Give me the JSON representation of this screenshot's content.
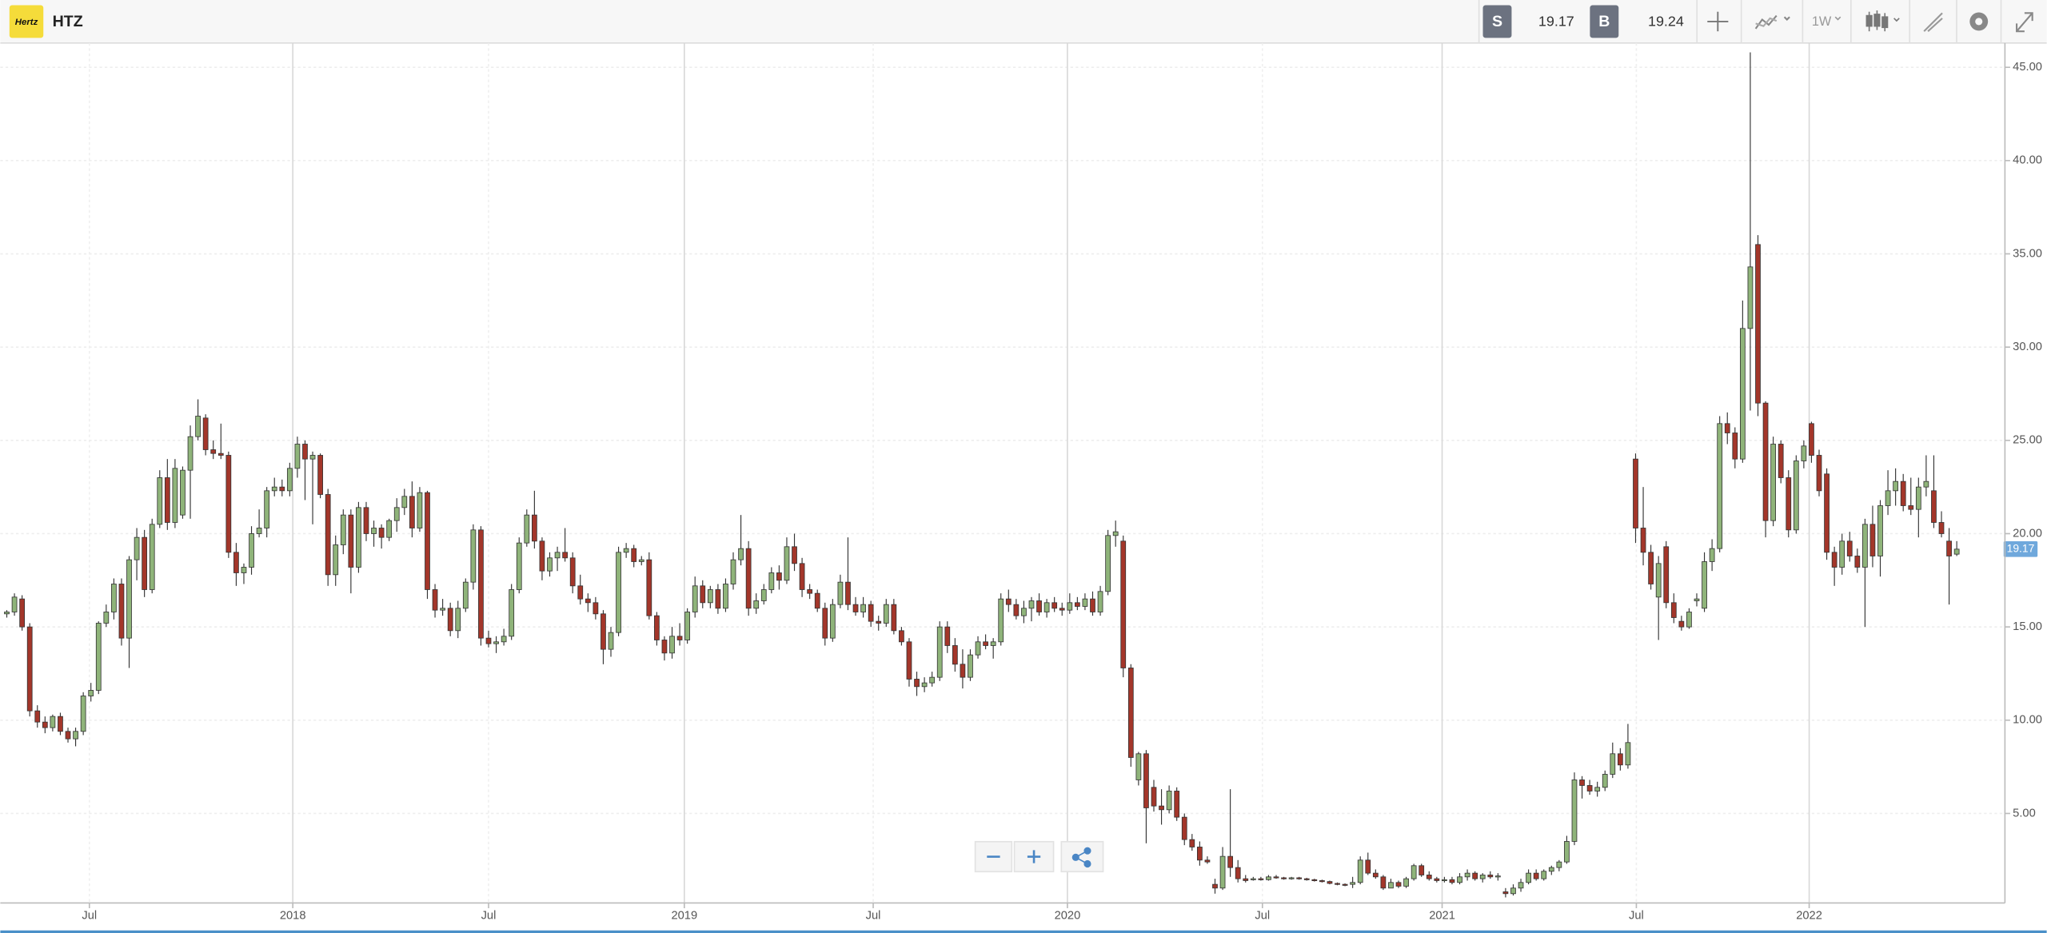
{
  "header": {
    "logo": "Hertz",
    "symbol": "HTZ",
    "sell_label": "S",
    "sell": 19.17,
    "buy_label": "B",
    "buy": 19.24,
    "interval": "1W"
  },
  "chart_data": {
    "type": "candlestick",
    "up_color": "#8fb47a",
    "down_color": "#a3362a",
    "grid": true,
    "ylim": [
      0.2,
      46.3
    ],
    "yticks": [
      {
        "value": 5,
        "label": "5.00"
      },
      {
        "value": 10,
        "label": "10.00"
      },
      {
        "value": 15,
        "label": "15.00"
      },
      {
        "value": 20,
        "label": "20.00"
      },
      {
        "value": 25,
        "label": "25.00"
      },
      {
        "value": 30,
        "label": "30.00"
      },
      {
        "value": 35,
        "label": "35.00"
      },
      {
        "value": 40,
        "label": "40.00"
      },
      {
        "value": 45,
        "label": "45.00"
      }
    ],
    "xlim": [
      -0.85,
      261.3
    ],
    "xticks": [
      {
        "value": 10.8,
        "label": "Jul"
      },
      {
        "value": 37.4,
        "label": "2018"
      },
      {
        "value": 63.0,
        "label": "Jul"
      },
      {
        "value": 88.6,
        "label": "2019"
      },
      {
        "value": 113.3,
        "label": "Jul"
      },
      {
        "value": 138.7,
        "label": "2020"
      },
      {
        "value": 164.2,
        "label": "Jul"
      },
      {
        "value": 187.7,
        "label": "2021"
      },
      {
        "value": 213.1,
        "label": "Jul"
      },
      {
        "value": 235.7,
        "label": "2022"
      }
    ],
    "ohlc": [
      [
        15.7,
        15.9,
        15.5,
        15.8
      ],
      [
        15.8,
        16.8,
        15.6,
        16.6
      ],
      [
        16.5,
        16.7,
        14.8,
        15.0
      ],
      [
        15.0,
        15.2,
        10.2,
        10.5
      ],
      [
        10.5,
        10.8,
        9.6,
        9.9
      ],
      [
        9.9,
        10.2,
        9.3,
        9.6
      ],
      [
        9.6,
        10.3,
        9.4,
        10.2
      ],
      [
        10.2,
        10.4,
        9.2,
        9.4
      ],
      [
        9.4,
        9.6,
        8.8,
        9.0
      ],
      [
        9.0,
        9.6,
        8.6,
        9.4
      ],
      [
        9.4,
        11.5,
        9.2,
        11.3
      ],
      [
        11.3,
        12.0,
        11.0,
        11.6
      ],
      [
        11.6,
        15.3,
        11.4,
        15.2
      ],
      [
        15.2,
        16.2,
        15.0,
        15.8
      ],
      [
        15.8,
        17.6,
        15.4,
        17.3
      ],
      [
        17.3,
        17.6,
        14.0,
        14.4
      ],
      [
        14.4,
        18.8,
        12.8,
        18.6
      ],
      [
        18.6,
        20.3,
        17.5,
        19.8
      ],
      [
        19.8,
        20.2,
        16.6,
        17.0
      ],
      [
        17.0,
        20.8,
        16.8,
        20.5
      ],
      [
        20.5,
        23.4,
        20.3,
        23.0
      ],
      [
        23.0,
        24.0,
        20.2,
        20.6
      ],
      [
        20.6,
        24.0,
        20.3,
        23.5
      ],
      [
        21.0,
        23.6,
        20.8,
        23.4
      ],
      [
        23.4,
        25.8,
        20.8,
        25.2
      ],
      [
        25.2,
        27.2,
        25.0,
        26.3
      ],
      [
        26.2,
        26.4,
        24.2,
        24.5
      ],
      [
        24.5,
        25.0,
        24.0,
        24.3
      ],
      [
        24.3,
        25.9,
        24.0,
        24.2
      ],
      [
        24.2,
        24.4,
        18.7,
        19.0
      ],
      [
        19.0,
        19.5,
        17.2,
        17.9
      ],
      [
        17.9,
        18.4,
        17.3,
        18.2
      ],
      [
        18.2,
        20.4,
        17.8,
        20.0
      ],
      [
        20.0,
        21.3,
        19.8,
        20.3
      ],
      [
        20.3,
        22.5,
        19.8,
        22.3
      ],
      [
        22.3,
        23.0,
        22.0,
        22.5
      ],
      [
        22.5,
        22.9,
        22.0,
        22.3
      ],
      [
        22.3,
        23.8,
        22.0,
        23.5
      ],
      [
        23.5,
        25.2,
        23.0,
        24.8
      ],
      [
        24.8,
        25.0,
        21.8,
        24.0
      ],
      [
        24.0,
        24.4,
        20.5,
        24.2
      ],
      [
        24.2,
        24.3,
        21.9,
        22.1
      ],
      [
        22.1,
        22.4,
        17.2,
        17.8
      ],
      [
        17.8,
        19.9,
        17.2,
        19.4
      ],
      [
        19.4,
        21.3,
        18.9,
        21.0
      ],
      [
        21.0,
        21.3,
        16.8,
        18.2
      ],
      [
        18.2,
        21.7,
        17.9,
        21.4
      ],
      [
        21.4,
        21.7,
        19.6,
        20.0
      ],
      [
        20.0,
        20.7,
        19.3,
        20.3
      ],
      [
        20.3,
        20.5,
        19.2,
        19.8
      ],
      [
        19.8,
        20.8,
        19.6,
        20.7
      ],
      [
        20.7,
        21.9,
        20.1,
        21.4
      ],
      [
        21.4,
        22.4,
        21.0,
        22.0
      ],
      [
        22.0,
        22.8,
        19.8,
        20.3
      ],
      [
        20.3,
        22.5,
        20.1,
        22.2
      ],
      [
        22.2,
        22.3,
        16.5,
        17.0
      ],
      [
        17.0,
        17.3,
        15.5,
        15.9
      ],
      [
        15.9,
        16.5,
        15.6,
        16.0
      ],
      [
        16.0,
        16.3,
        14.5,
        14.8
      ],
      [
        14.8,
        16.4,
        14.4,
        16.0
      ],
      [
        16.0,
        17.6,
        15.8,
        17.4
      ],
      [
        17.4,
        20.5,
        17.0,
        20.2
      ],
      [
        20.2,
        20.4,
        14.0,
        14.4
      ],
      [
        14.4,
        14.8,
        13.9,
        14.1
      ],
      [
        14.1,
        14.5,
        13.6,
        14.2
      ],
      [
        14.2,
        14.9,
        14.0,
        14.5
      ],
      [
        14.5,
        17.3,
        14.3,
        17.0
      ],
      [
        17.0,
        19.8,
        16.8,
        19.5
      ],
      [
        19.5,
        21.3,
        19.3,
        21.0
      ],
      [
        21.0,
        22.3,
        19.2,
        19.6
      ],
      [
        19.6,
        19.8,
        17.5,
        18.0
      ],
      [
        18.0,
        19.0,
        17.7,
        18.7
      ],
      [
        18.7,
        19.3,
        18.0,
        19.0
      ],
      [
        19.0,
        20.3,
        18.5,
        18.7
      ],
      [
        18.7,
        19.0,
        16.8,
        17.2
      ],
      [
        17.2,
        17.8,
        16.2,
        16.5
      ],
      [
        16.5,
        16.8,
        15.8,
        16.3
      ],
      [
        16.3,
        16.6,
        15.4,
        15.7
      ],
      [
        15.7,
        15.9,
        13.0,
        13.8
      ],
      [
        13.8,
        15.0,
        13.4,
        14.7
      ],
      [
        14.7,
        19.3,
        14.5,
        19.0
      ],
      [
        19.0,
        19.5,
        18.7,
        19.2
      ],
      [
        19.2,
        19.4,
        18.2,
        18.5
      ],
      [
        18.5,
        18.8,
        18.3,
        18.6
      ],
      [
        18.6,
        19.0,
        15.4,
        15.6
      ],
      [
        15.6,
        15.8,
        14.0,
        14.3
      ],
      [
        14.3,
        14.5,
        13.2,
        13.6
      ],
      [
        13.6,
        15.0,
        13.3,
        14.5
      ],
      [
        14.5,
        15.2,
        14.0,
        14.3
      ],
      [
        14.3,
        16.0,
        14.1,
        15.8
      ],
      [
        15.8,
        17.7,
        15.5,
        17.2
      ],
      [
        17.2,
        17.5,
        16.0,
        16.3
      ],
      [
        16.3,
        17.2,
        16.0,
        17.0
      ],
      [
        17.0,
        17.3,
        15.7,
        16.0
      ],
      [
        16.0,
        17.6,
        15.8,
        17.3
      ],
      [
        17.3,
        19.0,
        17.0,
        18.6
      ],
      [
        18.6,
        21.0,
        18.3,
        19.2
      ],
      [
        19.2,
        19.6,
        15.6,
        16.0
      ],
      [
        16.0,
        16.8,
        15.7,
        16.4
      ],
      [
        16.4,
        17.3,
        16.2,
        17.0
      ],
      [
        17.0,
        18.2,
        16.8,
        17.9
      ],
      [
        17.9,
        18.3,
        17.0,
        17.5
      ],
      [
        17.5,
        19.8,
        17.3,
        19.3
      ],
      [
        19.3,
        20.0,
        18.0,
        18.4
      ],
      [
        18.4,
        18.7,
        16.6,
        17.0
      ],
      [
        17.0,
        17.3,
        16.5,
        16.8
      ],
      [
        16.8,
        17.0,
        15.8,
        16.0
      ],
      [
        16.0,
        16.3,
        14.0,
        14.4
      ],
      [
        14.4,
        16.5,
        14.2,
        16.2
      ],
      [
        16.2,
        17.8,
        16.0,
        17.4
      ],
      [
        17.4,
        19.8,
        15.9,
        16.2
      ],
      [
        16.2,
        16.6,
        15.6,
        15.8
      ],
      [
        15.8,
        16.6,
        15.5,
        16.2
      ],
      [
        16.2,
        16.4,
        15.0,
        15.3
      ],
      [
        15.3,
        15.6,
        14.8,
        15.2
      ],
      [
        15.2,
        16.5,
        15.0,
        16.2
      ],
      [
        16.2,
        16.5,
        14.6,
        14.8
      ],
      [
        14.8,
        15.0,
        14.0,
        14.2
      ],
      [
        14.2,
        14.4,
        11.8,
        12.2
      ],
      [
        12.2,
        12.6,
        11.3,
        11.8
      ],
      [
        11.8,
        12.3,
        11.5,
        12.0
      ],
      [
        12.0,
        12.6,
        11.8,
        12.3
      ],
      [
        12.3,
        15.3,
        12.1,
        15.0
      ],
      [
        15.0,
        15.3,
        13.6,
        14.0
      ],
      [
        14.0,
        14.4,
        12.6,
        13.0
      ],
      [
        13.0,
        13.8,
        11.7,
        12.3
      ],
      [
        12.3,
        13.8,
        12.1,
        13.5
      ],
      [
        13.5,
        14.5,
        13.3,
        14.2
      ],
      [
        14.2,
        14.6,
        13.8,
        14.0
      ],
      [
        14.0,
        14.4,
        13.3,
        14.2
      ],
      [
        14.2,
        16.8,
        14.0,
        16.5
      ],
      [
        16.5,
        17.0,
        15.8,
        16.2
      ],
      [
        16.2,
        16.5,
        15.4,
        15.6
      ],
      [
        15.6,
        16.4,
        15.2,
        16.0
      ],
      [
        16.0,
        16.6,
        15.3,
        16.4
      ],
      [
        16.4,
        16.8,
        15.6,
        15.8
      ],
      [
        15.8,
        16.5,
        15.5,
        16.3
      ],
      [
        16.3,
        16.6,
        15.8,
        16.0
      ],
      [
        16.0,
        16.3,
        15.6,
        15.9
      ],
      [
        15.9,
        16.8,
        15.7,
        16.3
      ],
      [
        16.3,
        16.6,
        15.9,
        16.1
      ],
      [
        16.1,
        16.8,
        15.9,
        16.5
      ],
      [
        16.5,
        16.9,
        15.6,
        15.8
      ],
      [
        15.8,
        17.2,
        15.6,
        16.9
      ],
      [
        16.9,
        20.2,
        16.7,
        19.9
      ],
      [
        19.9,
        20.7,
        19.3,
        20.1
      ],
      [
        19.6,
        19.9,
        12.3,
        12.8
      ],
      [
        12.8,
        13.0,
        7.5,
        8.0
      ],
      [
        6.8,
        8.3,
        6.5,
        8.2
      ],
      [
        8.2,
        8.4,
        3.4,
        5.3
      ],
      [
        6.4,
        6.8,
        5.1,
        5.4
      ],
      [
        5.4,
        6.3,
        4.4,
        5.2
      ],
      [
        5.2,
        6.5,
        5.0,
        6.2
      ],
      [
        6.2,
        6.4,
        4.6,
        4.8
      ],
      [
        4.8,
        5.0,
        3.3,
        3.6
      ],
      [
        3.6,
        3.9,
        3.0,
        3.2
      ],
      [
        3.2,
        3.5,
        2.2,
        2.5
      ],
      [
        2.5,
        2.7,
        2.3,
        2.4
      ],
      [
        1.2,
        1.5,
        0.7,
        1.0
      ],
      [
        1.0,
        3.2,
        0.9,
        2.7
      ],
      [
        2.7,
        6.3,
        1.6,
        2.1
      ],
      [
        2.1,
        2.5,
        1.3,
        1.5
      ],
      [
        1.5,
        1.7,
        1.3,
        1.4
      ],
      [
        1.5,
        1.6,
        1.4,
        1.5
      ],
      [
        1.5,
        1.6,
        1.4,
        1.45
      ],
      [
        1.45,
        1.7,
        1.4,
        1.6
      ],
      [
        1.6,
        1.7,
        1.5,
        1.55
      ],
      [
        1.55,
        1.6,
        1.45,
        1.5
      ],
      [
        1.5,
        1.6,
        1.45,
        1.55
      ],
      [
        1.55,
        1.6,
        1.45,
        1.5
      ],
      [
        1.5,
        1.55,
        1.4,
        1.45
      ],
      [
        1.45,
        1.5,
        1.35,
        1.4
      ],
      [
        1.4,
        1.45,
        1.3,
        1.35
      ],
      [
        1.35,
        1.4,
        1.2,
        1.25
      ],
      [
        1.25,
        1.3,
        1.15,
        1.2
      ],
      [
        1.2,
        1.25,
        1.1,
        1.15
      ],
      [
        1.2,
        1.6,
        1.0,
        1.3
      ],
      [
        1.3,
        2.7,
        1.2,
        2.5
      ],
      [
        2.5,
        2.9,
        1.7,
        1.8
      ],
      [
        1.8,
        2.0,
        1.5,
        1.6
      ],
      [
        1.6,
        1.7,
        0.9,
        1.0
      ],
      [
        1.0,
        1.5,
        1.0,
        1.3
      ],
      [
        1.3,
        1.4,
        1.0,
        1.1
      ],
      [
        1.1,
        1.6,
        1.0,
        1.5
      ],
      [
        1.5,
        2.3,
        1.4,
        2.2
      ],
      [
        2.2,
        2.3,
        1.6,
        1.7
      ],
      [
        1.7,
        1.9,
        1.4,
        1.5
      ],
      [
        1.5,
        1.6,
        1.3,
        1.4
      ],
      [
        1.4,
        1.6,
        1.3,
        1.45
      ],
      [
        1.45,
        1.6,
        1.2,
        1.3
      ],
      [
        1.3,
        1.8,
        1.2,
        1.6
      ],
      [
        1.6,
        2.0,
        1.4,
        1.8
      ],
      [
        1.8,
        1.9,
        1.4,
        1.5
      ],
      [
        1.5,
        1.8,
        1.3,
        1.7
      ],
      [
        1.7,
        1.9,
        1.5,
        1.6
      ],
      [
        1.6,
        1.8,
        1.4,
        1.65
      ],
      [
        0.8,
        1.0,
        0.5,
        0.7
      ],
      [
        0.7,
        1.2,
        0.6,
        1.0
      ],
      [
        1.0,
        1.5,
        0.8,
        1.3
      ],
      [
        1.3,
        2.0,
        1.2,
        1.8
      ],
      [
        1.8,
        2.0,
        1.4,
        1.5
      ],
      [
        1.5,
        2.0,
        1.4,
        1.9
      ],
      [
        1.9,
        2.2,
        1.7,
        2.1
      ],
      [
        2.1,
        2.5,
        1.9,
        2.4
      ],
      [
        2.4,
        3.8,
        2.3,
        3.5
      ],
      [
        3.5,
        7.2,
        3.3,
        6.8
      ],
      [
        6.8,
        7.0,
        5.8,
        6.5
      ],
      [
        6.5,
        6.8,
        6.0,
        6.2
      ],
      [
        6.2,
        6.7,
        5.9,
        6.4
      ],
      [
        6.4,
        7.3,
        6.2,
        7.1
      ],
      [
        7.1,
        8.8,
        6.9,
        8.2
      ],
      [
        8.2,
        8.5,
        7.3,
        7.6
      ],
      [
        7.6,
        9.8,
        7.4,
        8.8
      ],
      [
        24.0,
        24.3,
        19.5,
        20.3
      ],
      [
        20.3,
        22.5,
        18.3,
        19.0
      ],
      [
        19.0,
        19.4,
        17.0,
        17.3
      ],
      [
        16.6,
        18.8,
        14.3,
        18.4
      ],
      [
        19.3,
        19.6,
        16.0,
        16.3
      ],
      [
        16.3,
        16.8,
        15.2,
        15.5
      ],
      [
        15.3,
        15.6,
        14.8,
        15.0
      ],
      [
        15.0,
        16.0,
        14.9,
        15.8
      ],
      [
        16.4,
        16.8,
        16.1,
        16.5
      ],
      [
        16.0,
        19.0,
        15.8,
        18.5
      ],
      [
        18.5,
        19.7,
        18.0,
        19.2
      ],
      [
        19.2,
        26.3,
        19.0,
        25.9
      ],
      [
        25.9,
        26.5,
        24.8,
        25.4
      ],
      [
        25.4,
        25.7,
        23.5,
        24.0
      ],
      [
        24.0,
        32.5,
        23.8,
        31.0
      ],
      [
        31.0,
        45.8,
        26.6,
        34.3
      ],
      [
        35.5,
        36.0,
        26.3,
        27.0
      ],
      [
        27.0,
        27.1,
        19.8,
        20.7
      ],
      [
        20.7,
        25.2,
        20.4,
        24.8
      ],
      [
        24.8,
        25.0,
        22.7,
        23.0
      ],
      [
        23.0,
        23.4,
        19.8,
        20.2
      ],
      [
        20.2,
        24.2,
        20.0,
        23.9
      ],
      [
        23.9,
        25.0,
        23.5,
        24.7
      ],
      [
        25.9,
        26.0,
        23.8,
        24.2
      ],
      [
        24.2,
        24.5,
        22.0,
        22.3
      ],
      [
        23.2,
        23.5,
        18.6,
        19.0
      ],
      [
        19.0,
        19.3,
        17.2,
        18.2
      ],
      [
        18.2,
        20.0,
        17.8,
        19.6
      ],
      [
        19.6,
        20.1,
        18.5,
        18.8
      ],
      [
        18.8,
        19.2,
        17.9,
        18.2
      ],
      [
        18.2,
        20.8,
        15.0,
        20.5
      ],
      [
        20.5,
        21.5,
        18.2,
        18.8
      ],
      [
        18.8,
        21.8,
        17.7,
        21.5
      ],
      [
        21.5,
        23.4,
        21.0,
        22.3
      ],
      [
        22.3,
        23.5,
        21.5,
        22.8
      ],
      [
        22.8,
        23.2,
        21.2,
        21.5
      ],
      [
        21.5,
        23.0,
        21.0,
        21.3
      ],
      [
        21.3,
        23.0,
        19.8,
        22.5
      ],
      [
        22.5,
        24.2,
        22.0,
        22.8
      ],
      [
        22.3,
        24.2,
        20.3,
        20.6
      ],
      [
        20.6,
        21.2,
        19.8,
        20.0
      ],
      [
        19.6,
        20.3,
        16.2,
        18.8
      ],
      [
        18.9,
        19.6,
        18.8,
        19.17
      ]
    ]
  }
}
